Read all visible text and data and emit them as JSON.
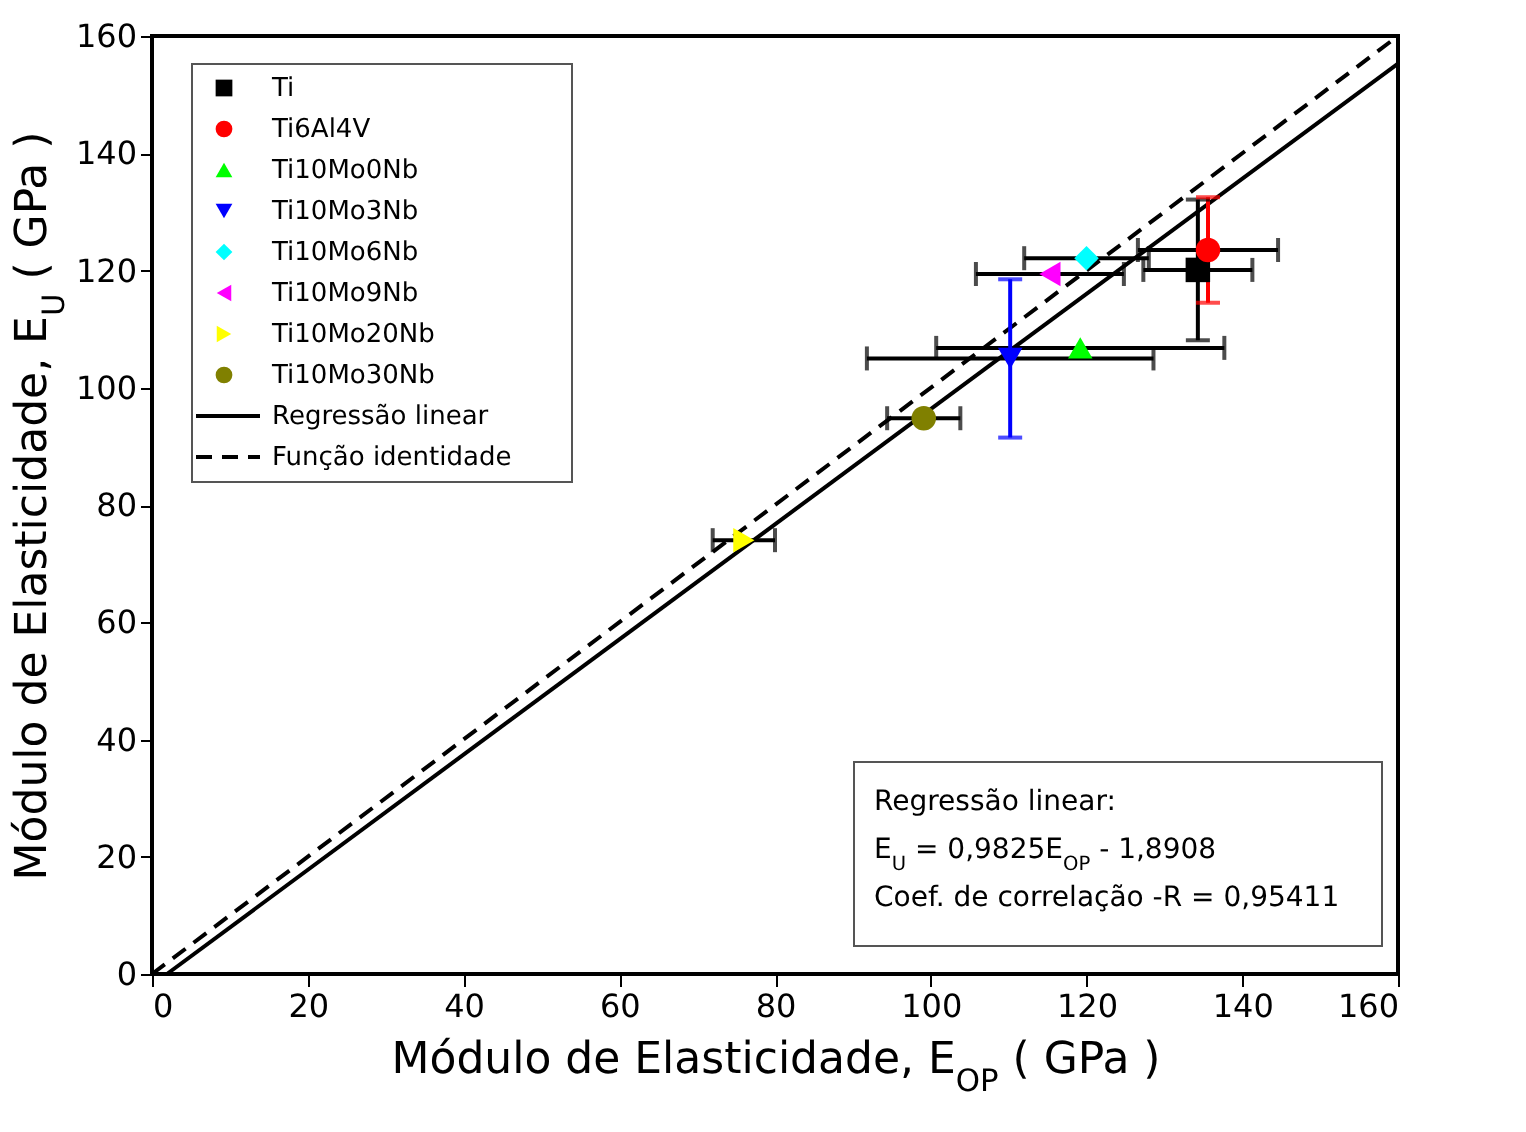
{
  "chart_data": {
    "type": "scatter",
    "xlabel": "Módulo de Elasticidade, E$_{OP}$ ( GPa )",
    "ylabel": "Módulo de Elasticidade, E$_{U}$ ( GPa )",
    "xlim": [
      0,
      160
    ],
    "ylim": [
      0,
      160
    ],
    "xticks": [
      0,
      20,
      40,
      60,
      80,
      100,
      120,
      140,
      160
    ],
    "yticks": [
      0,
      20,
      40,
      60,
      80,
      100,
      120,
      140,
      160
    ],
    "grid": false,
    "legend": "top left",
    "series": [
      {
        "name": "Ti",
        "color": "#000000",
        "marker": "square",
        "x": [
          134.3
        ],
        "values": [
          120.1
        ],
        "xerrors": [
          7
        ],
        "errors": [
          12
        ]
      },
      {
        "name": "Ti6Al4V",
        "color": "#ff0000",
        "marker": "circle",
        "x": [
          135.6
        ],
        "values": [
          123.5
        ],
        "xerrors": [
          9
        ],
        "errors": [
          9
        ]
      },
      {
        "name": "Ti10Mo0Nb",
        "color": "#00ff00",
        "marker": "triangle",
        "x": [
          119.2
        ],
        "values": [
          106.8
        ],
        "xerrors": [
          18.5
        ],
        "errors": [
          null
        ]
      },
      {
        "name": "Ti10Mo3Nb",
        "color": "#0000ff",
        "marker": "triangle-down",
        "x": [
          110.2
        ],
        "values": [
          105
        ],
        "xerrors": [
          18.4
        ],
        "errors": [
          13.5
        ]
      },
      {
        "name": "Ti10Mo6Nb",
        "color": "#00ffff",
        "marker": "diamond",
        "x": [
          120
        ],
        "values": [
          122.1
        ],
        "xerrors": [
          8
        ],
        "errors": [
          null
        ]
      },
      {
        "name": "Ti10Mo9Nb",
        "color": "#ff00ff",
        "marker": "triangle-left",
        "x": [
          115.3
        ],
        "values": [
          119.4
        ],
        "xerrors": [
          9.5
        ],
        "errors": [
          null
        ]
      },
      {
        "name": "Ti10Mo20Nb",
        "color": "#ffff00",
        "marker": "triangle-right",
        "x": [
          76
        ],
        "values": [
          74
        ],
        "xerrors": [
          4
        ],
        "errors": [
          null
        ]
      },
      {
        "name": "Ti10Mo30Nb",
        "color": "#808000",
        "x": [
          99.1
        ],
        "values": [
          94.8
        ],
        "xerrors": [
          4.7
        ],
        "errors": [
          null
        ]
      },
      {
        "name": "Regressão linear",
        "type": "line",
        "color": "#000000",
        "line_style": "solid",
        "x": [
          1.92,
          160
        ],
        "values": [
          0,
          155.3
        ]
      },
      {
        "name": "Função identidade",
        "type": "line",
        "color": "#000000",
        "line_style": "dashed",
        "x": [
          0,
          160
        ],
        "values": [
          0,
          160
        ]
      }
    ],
    "annotations": [
      "Regressão linear:",
      "E$_{U}$ = 0,9825E$_{OP}$ - 1,8908",
      "Coef. de correlação -R = 0,95411"
    ]
  }
}
